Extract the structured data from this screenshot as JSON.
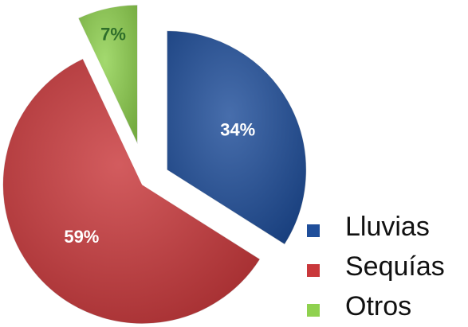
{
  "chart_data": {
    "type": "pie",
    "categories": [
      "Lluvias",
      "Sequías",
      "Otros"
    ],
    "values": [
      34,
      59,
      7
    ],
    "value_labels": [
      "34%",
      "59%",
      "7%"
    ],
    "colors": [
      "#1f4e9a",
      "#c9383b",
      "#8fd14f"
    ],
    "label_colors": [
      "#ffffff",
      "#ffffff",
      "#2e6e2a"
    ],
    "legend": "right"
  }
}
